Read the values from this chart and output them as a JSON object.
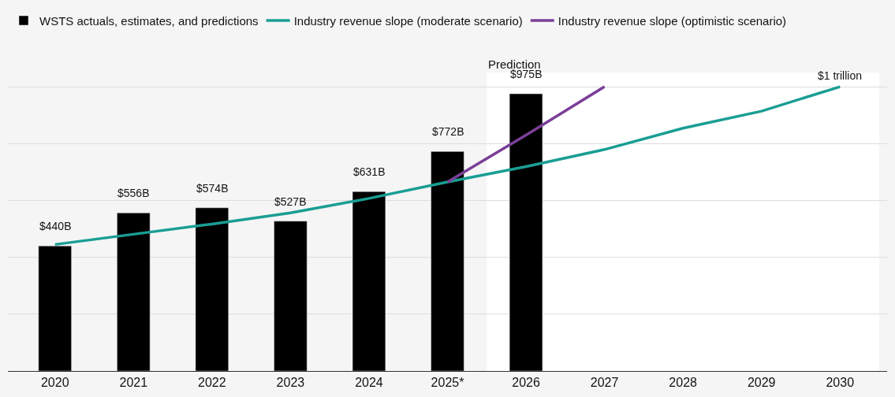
{
  "chart_data": {
    "type": "bar",
    "categories": [
      "2020",
      "2021",
      "2022",
      "2023",
      "2024",
      "2025*",
      "2026",
      "2027",
      "2028",
      "2029",
      "2030"
    ],
    "series": [
      {
        "name": "WSTS actuals, estimates, and predictions",
        "color": "#000000",
        "values": [
          440,
          556,
          574,
          527,
          631,
          772,
          975,
          null,
          null,
          null,
          null
        ],
        "value_labels": [
          "$440B",
          "$556B",
          "$574B",
          "$527B",
          "$631B",
          "$772B",
          "$975B",
          null,
          null,
          null,
          null
        ]
      },
      {
        "name": "Industry revenue slope (moderate scenario)",
        "type": "line",
        "color": "#1a9e93",
        "values": [
          445,
          481,
          517,
          556,
          607,
          665,
          719,
          779,
          854,
          914,
          1000
        ]
      },
      {
        "name": "Industry revenue slope (optimistic scenario)",
        "type": "line",
        "color": "#7b3f98",
        "values": [
          null,
          null,
          null,
          null,
          null,
          665,
          830,
          1000,
          null,
          null,
          null
        ]
      }
    ],
    "ylim": [
      0,
      1050
    ],
    "yticks": [
      {
        "value": 0,
        "label": null
      },
      {
        "value": 200,
        "label": null
      },
      {
        "value": 400,
        "label": null
      },
      {
        "value": 600,
        "label": null
      },
      {
        "value": 800,
        "label": null
      },
      {
        "value": 1000,
        "label": null
      }
    ],
    "tick_labels": "x",
    "grid": "y",
    "legend": "top left",
    "marker": "none",
    "line_style": "solid",
    "bands": [
      {
        "axis": "x",
        "from": "2026",
        "to": "2030",
        "label": "Prediction",
        "color": "#ffffff"
      }
    ],
    "annotations": [
      {
        "text": "$1 trillion",
        "x": "2030",
        "y": 1000
      }
    ]
  }
}
